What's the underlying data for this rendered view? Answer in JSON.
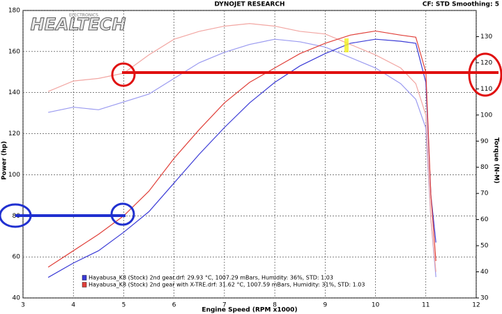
{
  "chart_data": {
    "type": "line",
    "title": "DYNOJET RESEARCH",
    "subtitle": "CF: STD  Smoothing: 5",
    "logo": "HEALTECH",
    "logo_sub": "ELECTRONICS",
    "x_label": "Engine Speed (RPM x1000)",
    "y_label": "Power (hp)",
    "y2_label": "Torque (N-M)",
    "xlim": [
      3,
      12
    ],
    "xticks": [
      3,
      4,
      5,
      6,
      7,
      8,
      9,
      10,
      11,
      12
    ],
    "ylim": [
      40,
      180
    ],
    "yticks": [
      40,
      60,
      80,
      100,
      120,
      140,
      160,
      180
    ],
    "y2lim": [
      30,
      140
    ],
    "y2ticks": [
      30,
      40,
      50,
      60,
      70,
      80,
      90,
      100,
      110,
      120,
      130
    ],
    "grid": true,
    "x": [
      3.5,
      4,
      4.5,
      5,
      5.5,
      6,
      6.5,
      7,
      7.5,
      8,
      8.5,
      9,
      9.5,
      10,
      10.5,
      10.8,
      11,
      11.1,
      11.2
    ],
    "series": [
      {
        "name": "Hayabusa_K8 (Stock) 2nd gear.drf: 29.93 °C, 1007.29 mBars, Humidity: 36%, STD: 1.03",
        "color": "#3b3bd6",
        "torque_color": "#9a9af0",
        "values": [
          50,
          57,
          63,
          72,
          82,
          96,
          110,
          123,
          135,
          145,
          153,
          159,
          164,
          166,
          165,
          164,
          145,
          90,
          67
        ],
        "torque": [
          101,
          103,
          102,
          105,
          108,
          114,
          120,
          124,
          127,
          129,
          128,
          126,
          122,
          118,
          112,
          106,
          95,
          60,
          38
        ]
      },
      {
        "name": "Hayabusa_K8 (Stock) 2nd gear with X-TRE.drf: 31.62 °C, 1007.59 mBars, Humidity: 31%, STD: 1.03",
        "color": "#e0403a",
        "torque_color": "#f2a6a2",
        "values": [
          55,
          63,
          71,
          80,
          92,
          108,
          122,
          135,
          145,
          152,
          159,
          164,
          168,
          170,
          168,
          167,
          150,
          90,
          58
        ],
        "torque": [
          109,
          113,
          114,
          116,
          123,
          129,
          132,
          134,
          135,
          134,
          132,
          131,
          127,
          123,
          118,
          112,
          100,
          60,
          40
        ]
      }
    ]
  }
}
